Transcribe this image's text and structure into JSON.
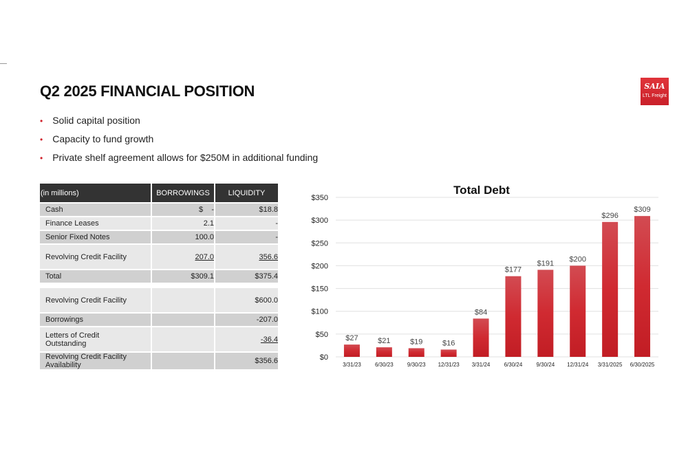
{
  "title": "Q2 2025 FINANCIAL POSITION",
  "logo": {
    "brand": "SAIA",
    "sub": "LTL Freight",
    "color": "#d8262e"
  },
  "bullets": [
    "Solid capital position",
    "Capacity to fund growth",
    "Private shelf agreement allows for $250M in additional funding"
  ],
  "table": {
    "headers": [
      "(in millions)",
      "BORROWINGS",
      "LIQUIDITY"
    ],
    "rows": [
      {
        "label": "Cash",
        "borrowings": "$    -",
        "liquidity": "$18.8"
      },
      {
        "label": "Finance Leases",
        "borrowings": "2.1",
        "liquidity": "-"
      },
      {
        "label": "Senior Fixed Notes",
        "borrowings": "100.0",
        "liquidity": "-"
      },
      {
        "label": "Revolving Credit Facility",
        "borrowings": "207.0",
        "liquidity": "356.6"
      },
      {
        "label": "Total",
        "borrowings": "$309.1",
        "liquidity": "$375.4"
      }
    ],
    "rows2": [
      {
        "label": "Revolving Credit Facility",
        "borrowings": "",
        "liquidity": "$600.0"
      },
      {
        "label": "Borrowings",
        "borrowings": "",
        "liquidity": "-207.0"
      },
      {
        "label": "Letters of Credit Outstanding",
        "borrowings": "",
        "liquidity": "-36.4"
      },
      {
        "label": "Revolving Credit Facility Availability",
        "borrowings": "",
        "liquidity": "$356.6"
      }
    ]
  },
  "chart_data": {
    "type": "bar",
    "title": "Total Debt",
    "categories": [
      "3/31/23",
      "6/30/23",
      "9/30/23",
      "12/31/23",
      "3/31/24",
      "6/30/24",
      "9/30/24",
      "12/31/24",
      "3/31/2025",
      "6/30/2025"
    ],
    "values": [
      27,
      21,
      19,
      16,
      84,
      177,
      191,
      200,
      296,
      309
    ],
    "data_labels": [
      "$27",
      "$21",
      "$19",
      "$16",
      "$84",
      "$177",
      "$191",
      "$200",
      "$296",
      "$309"
    ],
    "yticks": [
      "$0",
      "$50",
      "$100",
      "$150",
      "$200",
      "$250",
      "$300",
      "$350"
    ],
    "ylim": [
      0,
      350
    ],
    "grid": true,
    "bar_color": "#cc2229"
  }
}
